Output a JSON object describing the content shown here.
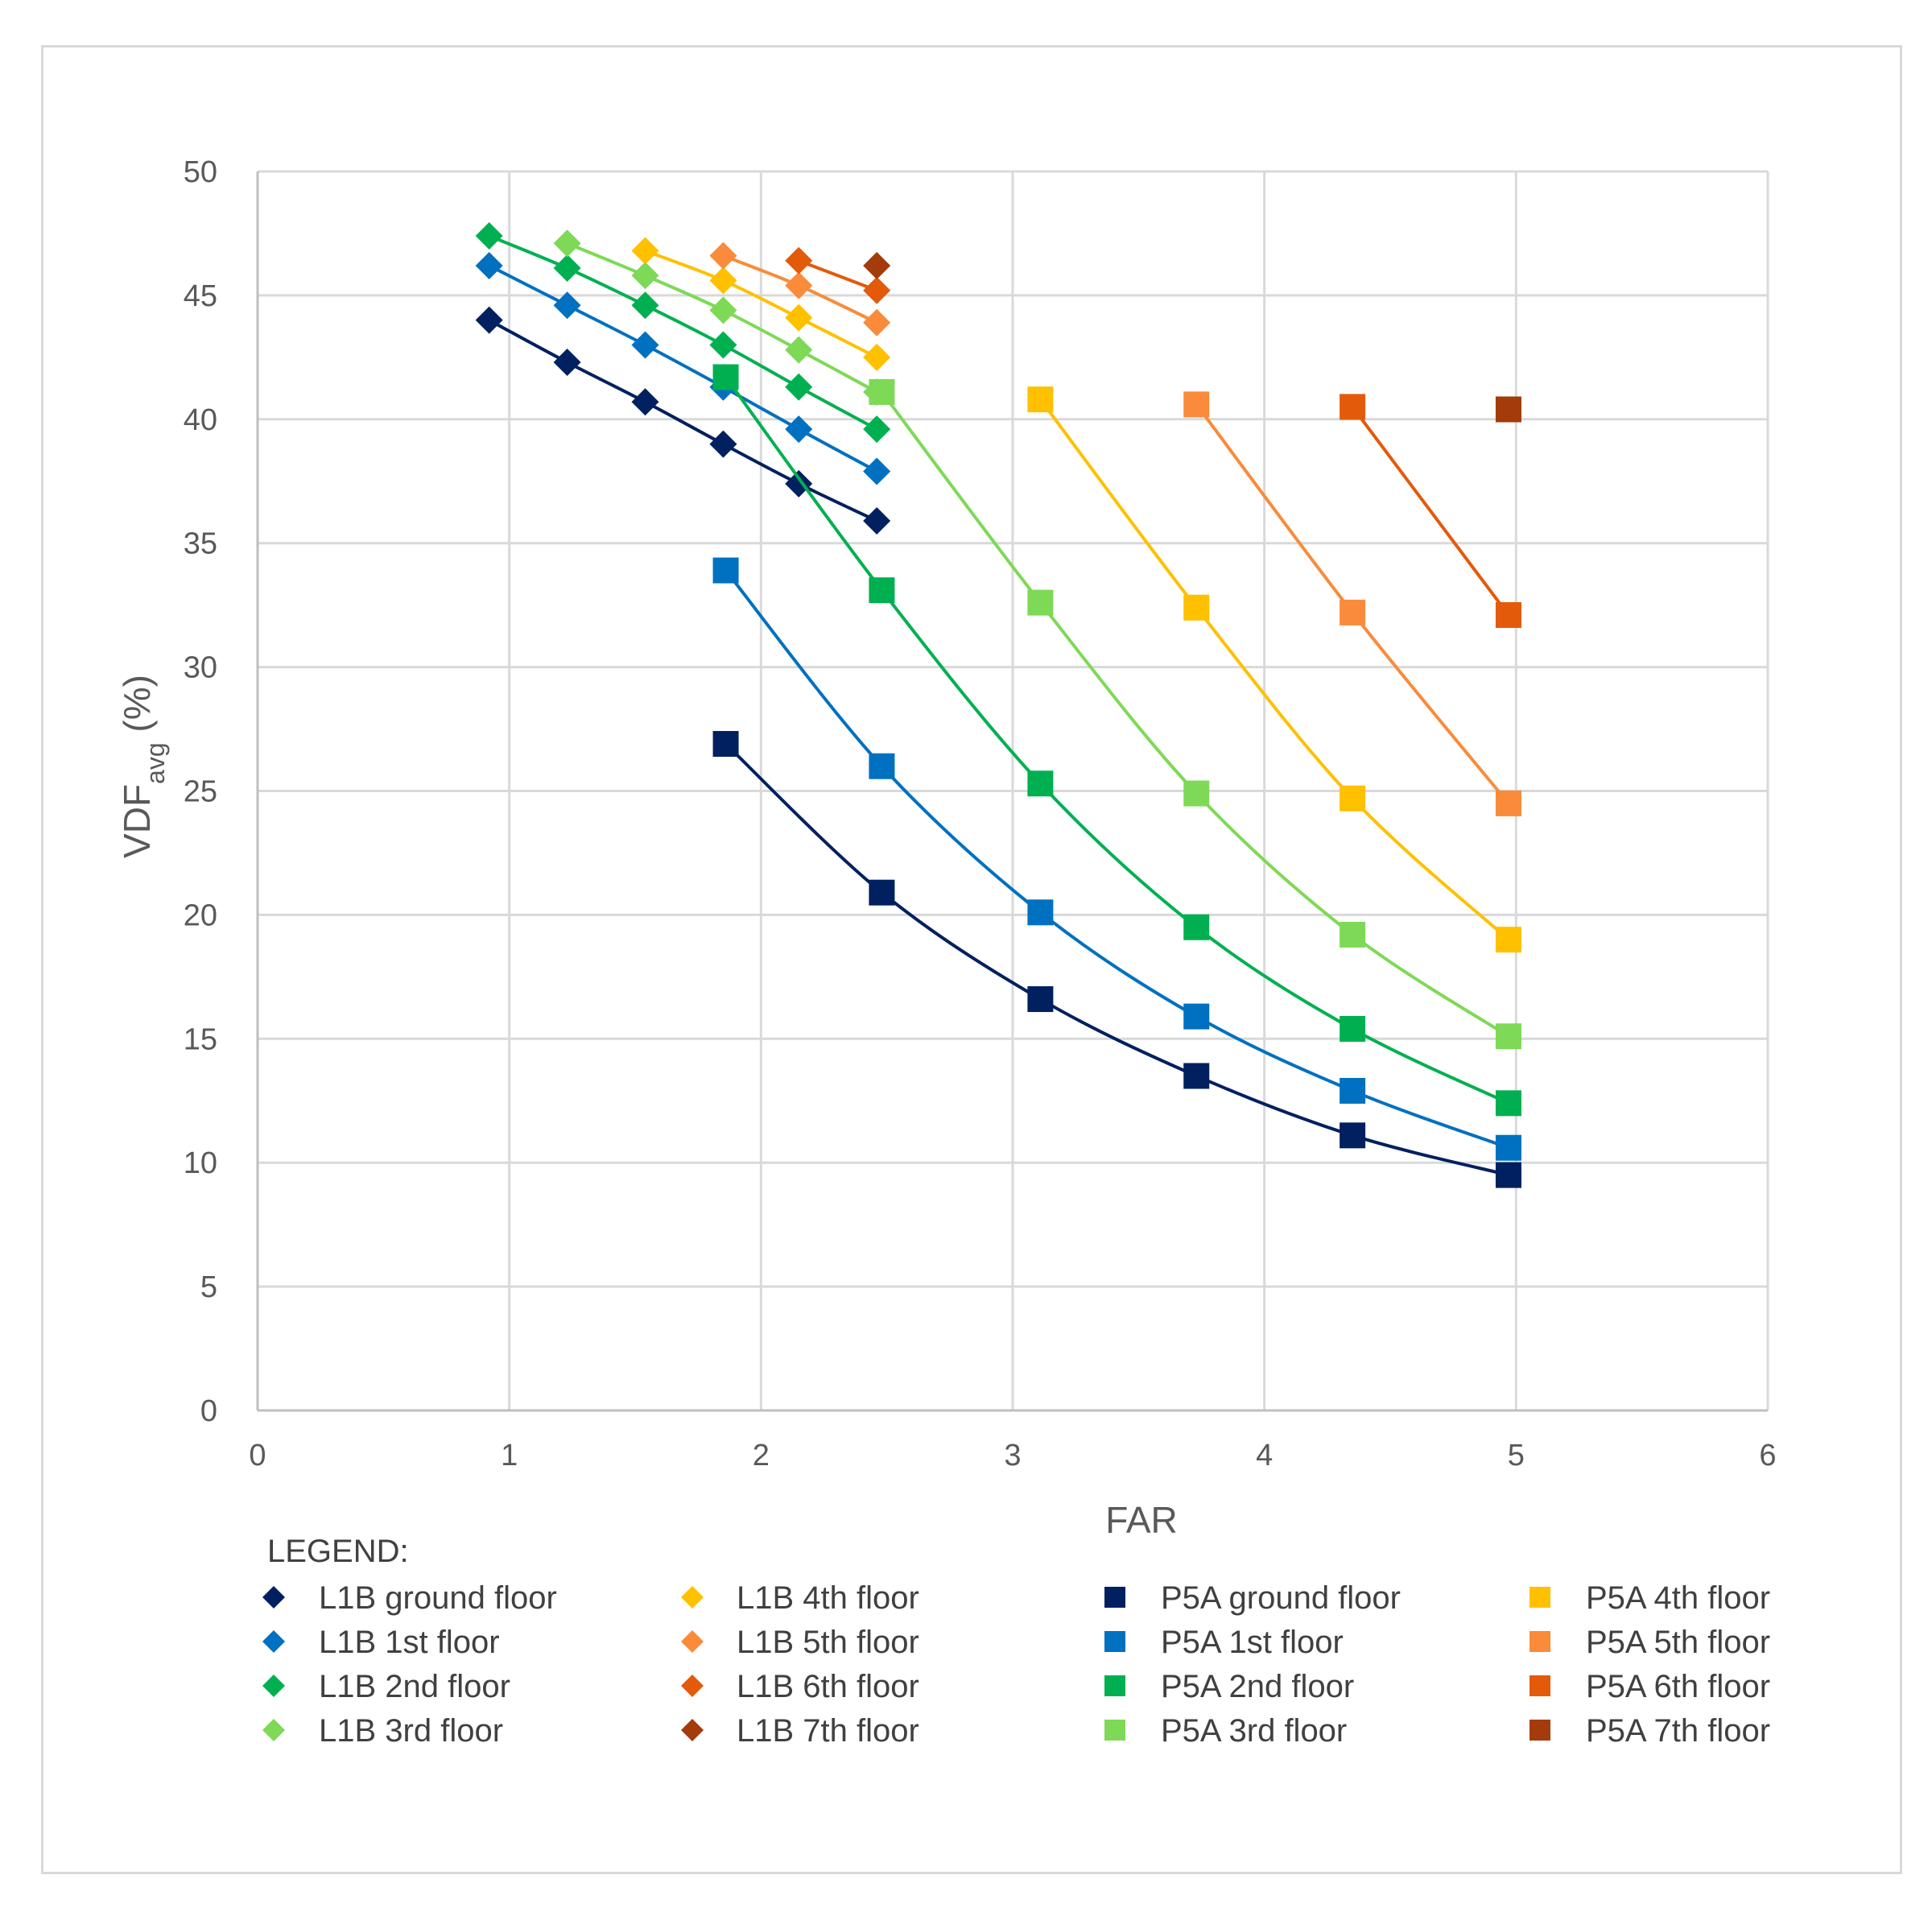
{
  "chart_data": {
    "type": "scatter",
    "title": "",
    "xlabel": "FAR",
    "ylabel_main": "VDF",
    "ylabel_sub": "avg",
    "ylabel_suffix": " (%)",
    "xlim": [
      0,
      6
    ],
    "ylim": [
      0,
      50
    ],
    "xticks": [
      0,
      1,
      2,
      3,
      4,
      5,
      6
    ],
    "yticks": [
      0,
      5,
      10,
      15,
      20,
      25,
      30,
      35,
      40,
      45,
      50
    ],
    "grid": true,
    "legend_title": "LEGEND:",
    "legend_position": "bottom",
    "series": [
      {
        "name": "L1B ground floor",
        "marker": "diamond",
        "color": "#002060",
        "x": [
          0.92,
          1.23,
          1.54,
          1.85,
          2.15,
          2.46
        ],
        "y": [
          44.0,
          42.3,
          40.7,
          39.0,
          37.4,
          35.9
        ]
      },
      {
        "name": "L1B 1st floor",
        "marker": "diamond",
        "color": "#0070C0",
        "x": [
          0.92,
          1.23,
          1.54,
          1.85,
          2.15,
          2.46
        ],
        "y": [
          46.2,
          44.6,
          43.0,
          41.3,
          39.6,
          37.9
        ]
      },
      {
        "name": "L1B 2nd floor",
        "marker": "diamond",
        "color": "#00B050",
        "x": [
          0.92,
          1.23,
          1.54,
          1.85,
          2.15,
          2.46
        ],
        "y": [
          47.4,
          46.1,
          44.6,
          43.0,
          41.3,
          39.6
        ]
      },
      {
        "name": "L1B 3rd floor",
        "marker": "diamond",
        "color": "#7ED957",
        "x": [
          1.23,
          1.54,
          1.85,
          2.15,
          2.46
        ],
        "y": [
          47.1,
          45.8,
          44.4,
          42.8,
          41.1
        ]
      },
      {
        "name": "L1B 4th floor",
        "marker": "diamond",
        "color": "#FFC000",
        "x": [
          1.54,
          1.85,
          2.15,
          2.46
        ],
        "y": [
          46.8,
          45.6,
          44.1,
          42.5
        ]
      },
      {
        "name": "L1B 5th floor",
        "marker": "diamond",
        "color": "#F98B3A",
        "x": [
          1.85,
          2.15,
          2.46
        ],
        "y": [
          46.6,
          45.4,
          43.9
        ]
      },
      {
        "name": "L1B 6th floor",
        "marker": "diamond",
        "color": "#E35A0A",
        "x": [
          2.15,
          2.46
        ],
        "y": [
          46.4,
          45.2
        ]
      },
      {
        "name": "L1B 7th floor",
        "marker": "diamond",
        "color": "#A33B0A",
        "x": [
          2.46
        ],
        "y": [
          46.2
        ]
      },
      {
        "name": "P5A ground floor",
        "marker": "square",
        "color": "#002060",
        "x": [
          1.86,
          2.48,
          3.11,
          3.73,
          4.35,
          4.97
        ],
        "y": [
          26.9,
          20.9,
          16.6,
          13.5,
          11.1,
          9.5
        ]
      },
      {
        "name": "P5A 1st floor",
        "marker": "square",
        "color": "#0070C0",
        "x": [
          1.86,
          2.48,
          3.11,
          3.73,
          4.35,
          4.97
        ],
        "y": [
          33.9,
          26.0,
          20.1,
          15.9,
          12.9,
          10.6
        ]
      },
      {
        "name": "P5A 2nd floor",
        "marker": "square",
        "color": "#00B050",
        "x": [
          1.86,
          2.48,
          3.11,
          3.73,
          4.35,
          4.97
        ],
        "y": [
          41.7,
          33.1,
          25.3,
          19.5,
          15.4,
          12.4
        ]
      },
      {
        "name": "P5A 3rd floor",
        "marker": "square",
        "color": "#7ED957",
        "x": [
          2.48,
          3.11,
          3.73,
          4.35,
          4.97
        ],
        "y": [
          41.1,
          32.6,
          24.9,
          19.2,
          15.1
        ]
      },
      {
        "name": "P5A 4th floor",
        "marker": "square",
        "color": "#FFC000",
        "x": [
          3.11,
          3.73,
          4.35,
          4.97
        ],
        "y": [
          40.8,
          32.4,
          24.7,
          19.0
        ]
      },
      {
        "name": "P5A 5th floor",
        "marker": "square",
        "color": "#F98B3A",
        "x": [
          3.73,
          4.35,
          4.97
        ],
        "y": [
          40.6,
          32.2,
          24.5
        ]
      },
      {
        "name": "P5A 6th floor",
        "marker": "square",
        "color": "#E35A0A",
        "x": [
          4.35,
          4.97
        ],
        "y": [
          40.5,
          32.1
        ]
      },
      {
        "name": "P5A 7th floor",
        "marker": "square",
        "color": "#A33B0A",
        "x": [
          4.97
        ],
        "y": [
          40.4
        ]
      }
    ]
  }
}
